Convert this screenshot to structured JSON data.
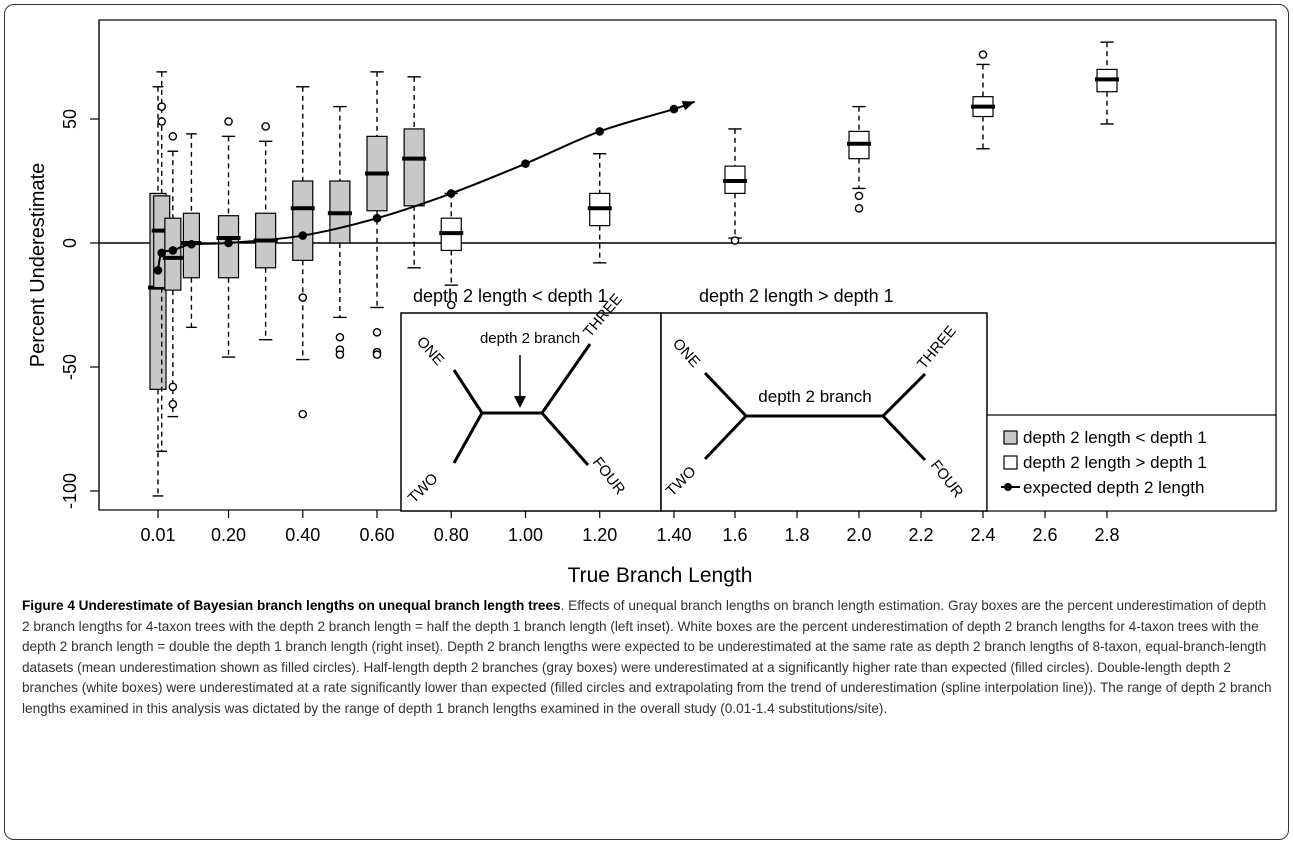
{
  "chart_data": {
    "type": "box",
    "xlabel": "True Branch Length",
    "ylabel": "Percent Underestimate",
    "ylim": [
      -100,
      75
    ],
    "xlim": [
      0,
      2.8
    ],
    "y_ticks": [
      "-100",
      "-50",
      "0",
      "50"
    ],
    "y_tick_values": [
      -100,
      -50,
      0,
      50
    ],
    "x_ticks": [
      "0.01",
      "0.20",
      "0.40",
      "0.60",
      "0.80",
      "1.00",
      "1.20",
      "1.40",
      "1.6",
      "1.8",
      "2.0",
      "2.2",
      "2.4",
      "2.6",
      "2.8"
    ],
    "x_tick_values": [
      0.01,
      0.2,
      0.4,
      0.6,
      0.8,
      1.0,
      1.2,
      1.4,
      1.6,
      1.8,
      2.0,
      2.2,
      2.4,
      2.6,
      2.8
    ],
    "reference_line_y": 0,
    "legend_position": "bottom-right",
    "legend": [
      {
        "label": "depth 2 length < depth 1",
        "symbol": "gray-box"
      },
      {
        "label": "depth 2 length > depth 1",
        "symbol": "white-box"
      },
      {
        "label": "expected depth 2 length",
        "symbol": "line-dot"
      }
    ],
    "series": [
      {
        "name": "depth 2 length < depth 1",
        "fill": "#c8c8c8",
        "boxes": [
          {
            "x": 0.01,
            "whisker_low": -102,
            "q1": -59,
            "median": -18,
            "q3": 20,
            "whisker_high": 63,
            "outliers": []
          },
          {
            "x": 0.02,
            "whisker_low": -84,
            "q1": -18,
            "median": 5,
            "q3": 19,
            "whisker_high": 69,
            "outliers": [
              55,
              49
            ]
          },
          {
            "x": 0.05,
            "whisker_low": -70,
            "q1": -19,
            "median": -6,
            "q3": 10,
            "whisker_high": 37,
            "outliers": [
              -58,
              -65,
              43
            ]
          },
          {
            "x": 0.1,
            "whisker_low": -34,
            "q1": -14,
            "median": 0,
            "q3": 12,
            "whisker_high": 44,
            "outliers": []
          },
          {
            "x": 0.2,
            "whisker_low": -46,
            "q1": -14,
            "median": 2,
            "q3": 11,
            "whisker_high": 43,
            "outliers": [
              49
            ]
          },
          {
            "x": 0.3,
            "whisker_low": -39,
            "q1": -10,
            "median": 1,
            "q3": 12,
            "whisker_high": 41,
            "outliers": [
              47
            ]
          },
          {
            "x": 0.4,
            "whisker_low": -47,
            "q1": -7,
            "median": 14,
            "q3": 25,
            "whisker_high": 63,
            "outliers": [
              -22,
              -69
            ]
          },
          {
            "x": 0.5,
            "whisker_low": -30,
            "q1": 0,
            "median": 12,
            "q3": 25,
            "whisker_high": 55,
            "outliers": [
              -38,
              -43,
              -45
            ]
          },
          {
            "x": 0.6,
            "whisker_low": -26,
            "q1": 13,
            "median": 28,
            "q3": 43,
            "whisker_high": 69,
            "outliers": [
              -36,
              -44,
              -45
            ]
          },
          {
            "x": 0.7,
            "whisker_low": -10,
            "q1": 15,
            "median": 34,
            "q3": 46,
            "whisker_high": 67,
            "outliers": [
              -57
            ]
          }
        ]
      },
      {
        "name": "depth 2 length > depth 1",
        "fill": "#ffffff",
        "boxes": [
          {
            "x": 0.8,
            "whisker_low": -17,
            "q1": -3,
            "median": 4,
            "q3": 10,
            "whisker_high": 20,
            "outliers": [
              -25
            ]
          },
          {
            "x": 1.2,
            "whisker_low": -8,
            "q1": 7,
            "median": 14,
            "q3": 20,
            "whisker_high": 36,
            "outliers": []
          },
          {
            "x": 1.6,
            "whisker_low": 2,
            "q1": 20,
            "median": 25,
            "q3": 31,
            "whisker_high": 46,
            "outliers": [
              1
            ]
          },
          {
            "x": 2.0,
            "whisker_low": 22,
            "q1": 34,
            "median": 40,
            "q3": 45,
            "whisker_high": 55,
            "outliers": [
              19,
              14
            ]
          },
          {
            "x": 2.4,
            "whisker_low": 38,
            "q1": 51,
            "median": 55,
            "q3": 59,
            "whisker_high": 72,
            "outliers": [
              76
            ]
          },
          {
            "x": 2.8,
            "whisker_low": 48,
            "q1": 61,
            "median": 66,
            "q3": 70,
            "whisker_high": 81,
            "outliers": []
          }
        ]
      },
      {
        "name": "expected depth 2 length",
        "type": "line",
        "points": [
          {
            "x": 0.01,
            "y": -11
          },
          {
            "x": 0.02,
            "y": -4
          },
          {
            "x": 0.05,
            "y": -3
          },
          {
            "x": 0.1,
            "y": -0.5
          },
          {
            "x": 0.2,
            "y": 0
          },
          {
            "x": 0.4,
            "y": 3
          },
          {
            "x": 0.6,
            "y": 10
          },
          {
            "x": 0.8,
            "y": 20
          },
          {
            "x": 1.0,
            "y": 32
          },
          {
            "x": 1.2,
            "y": 45
          },
          {
            "x": 1.4,
            "y": 54
          }
        ],
        "arrow_end": {
          "x": 1.47,
          "y": 57
        }
      }
    ],
    "insets": [
      {
        "title": "depth 2 length < depth 1",
        "branch_label": "depth 2 branch",
        "arrow_pointer": true,
        "taxa": [
          "ONE",
          "TWO",
          "THREE",
          "FOUR"
        ]
      },
      {
        "title": "depth 2 length > depth 1",
        "branch_label": "depth 2 branch",
        "arrow_pointer": false,
        "taxa": [
          "ONE",
          "TWO",
          "THREE",
          "FOUR"
        ]
      }
    ]
  },
  "caption": {
    "title": "Figure 4 Underestimate of Bayesian branch lengths on unequal branch length trees",
    "body": ". Effects of unequal branch lengths on branch length estimation. Gray boxes are the percent underestimation of depth 2 branch lengths for 4-taxon trees with the depth 2 branch length = half the depth 1 branch length (left inset). White boxes are the percent underestimation of depth 2 branch lengths for 4-taxon trees with the depth 2 branch length = double the depth 1 branch length (right inset). Depth 2 branch lengths were expected to be underestimated at the same rate as depth 2 branch lengths of 8-taxon, equal-branch-length datasets (mean underestimation shown as filled circles). Half-length depth 2 branches (gray boxes) were underestimated at a significantly higher rate than expected (filled circles). Double-length depth 2 branches (white boxes) were underestimated at a rate significantly lower than expected (filled circles and extrapolating from the trend of underestimation (spline interpolation line)). The range of depth 2 branch lengths examined in this analysis was dictated by the range of depth 1 branch lengths examined in the overall study (0.01-1.4 substitutions/site)."
  }
}
